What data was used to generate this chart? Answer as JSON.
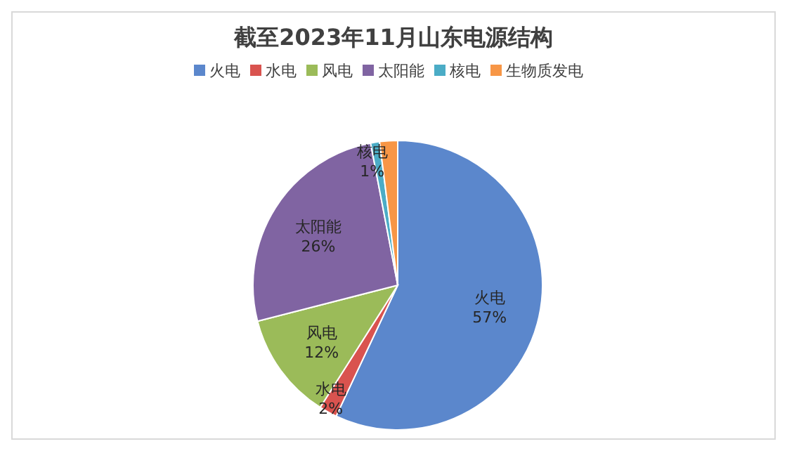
{
  "chart_data": {
    "type": "pie",
    "title": "截至2023年11月山东电源结构",
    "categories": [
      "火电",
      "水电",
      "风电",
      "太阳能",
      "核电",
      "生物质发电"
    ],
    "values": [
      57,
      2,
      12,
      26,
      1,
      2
    ],
    "colors": [
      "#5b87cc",
      "#d9534f",
      "#9bbb59",
      "#8064a2",
      "#4bacc6",
      "#f79646"
    ],
    "value_labels": [
      "57%",
      "2%",
      "12%",
      "26%",
      "1%",
      null
    ],
    "legend": "top"
  }
}
